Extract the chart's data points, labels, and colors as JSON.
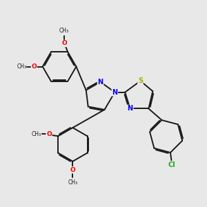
{
  "bg_color": "#e8e8e8",
  "bond_color": "#1a1a1a",
  "bond_width": 1.4,
  "dbo": 0.055,
  "atom_colors": {
    "N": "#0000ee",
    "S": "#aaaa00",
    "O": "#ee0000",
    "Cl": "#22aa22",
    "C": "#1a1a1a"
  },
  "font_size": 7.0,
  "figsize": [
    3.0,
    3.0
  ],
  "dpi": 100,
  "xlim": [
    0,
    10
  ],
  "ylim": [
    0,
    10
  ]
}
